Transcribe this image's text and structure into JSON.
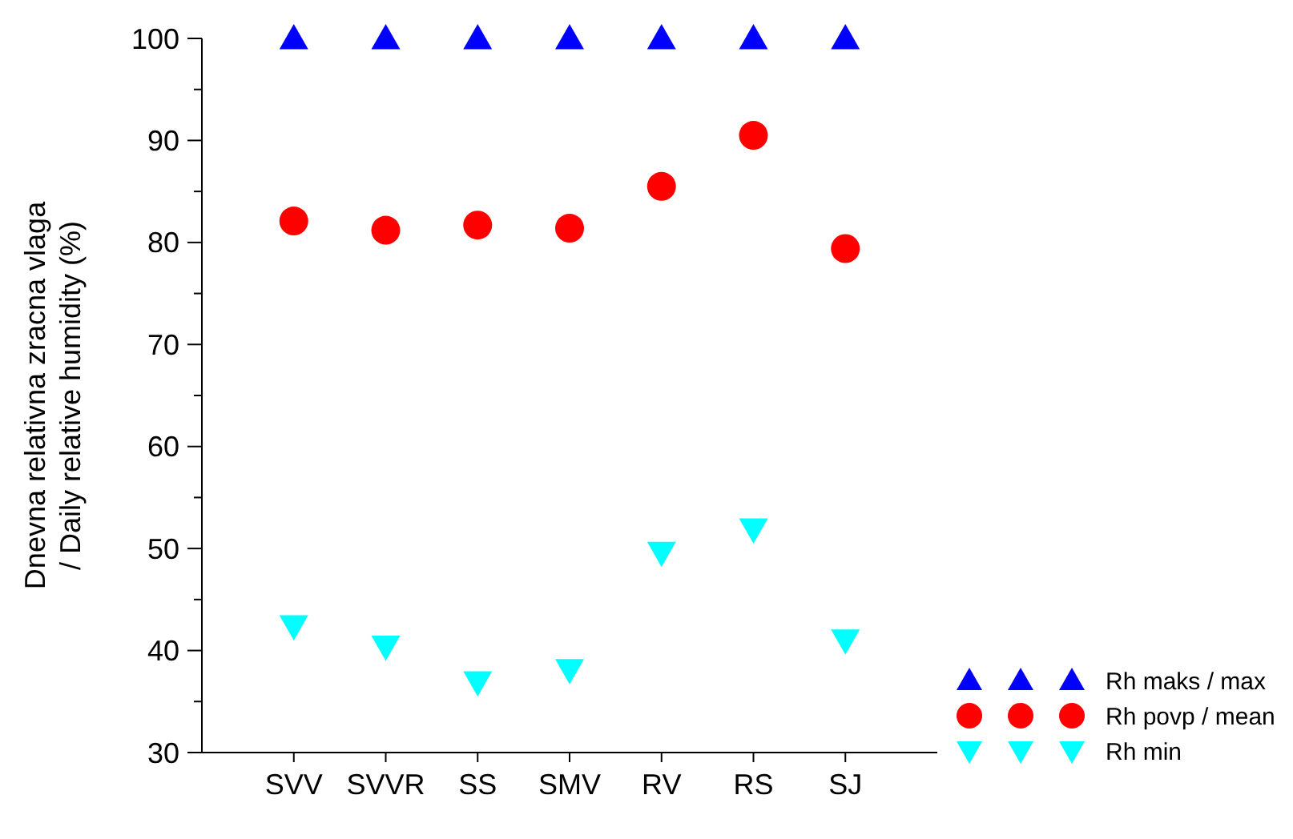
{
  "chart_data": {
    "type": "scatter",
    "ylabel": "Dnevna relativna zracna vlaga\n/ Daily relative humidity (%)",
    "categories": [
      "SVV",
      "SVVR",
      "SS",
      "SMV",
      "RV",
      "RS",
      "SJ"
    ],
    "ylim": [
      30,
      100
    ],
    "yticks": [
      30,
      {
        "value": 35,
        "label": null
      },
      40,
      {
        "value": 45,
        "label": null
      },
      50,
      {
        "value": 55,
        "label": null
      },
      60,
      {
        "value": 65,
        "label": null
      },
      70,
      {
        "value": 75,
        "label": null
      },
      80,
      {
        "value": 85,
        "label": null
      },
      90,
      {
        "value": 95,
        "label": null
      },
      100
    ],
    "grid": false,
    "legend": "bottom right",
    "series": [
      {
        "name": "Rh maks / max",
        "color": "#0000ff",
        "marker": "triangle",
        "values": [
          100,
          100,
          100,
          100,
          100,
          100,
          100
        ]
      },
      {
        "name": "Rh povp / mean",
        "color": "#ff0000",
        "marker": "circle",
        "values": [
          82.1,
          81.2,
          81.7,
          81.4,
          85.5,
          90.5,
          79.4
        ]
      },
      {
        "name": "Rh min",
        "color": "#00ffff",
        "marker": "triangle-down",
        "values": [
          42.4,
          40.4,
          36.9,
          38.1,
          49.6,
          51.9,
          41.0
        ]
      }
    ]
  }
}
